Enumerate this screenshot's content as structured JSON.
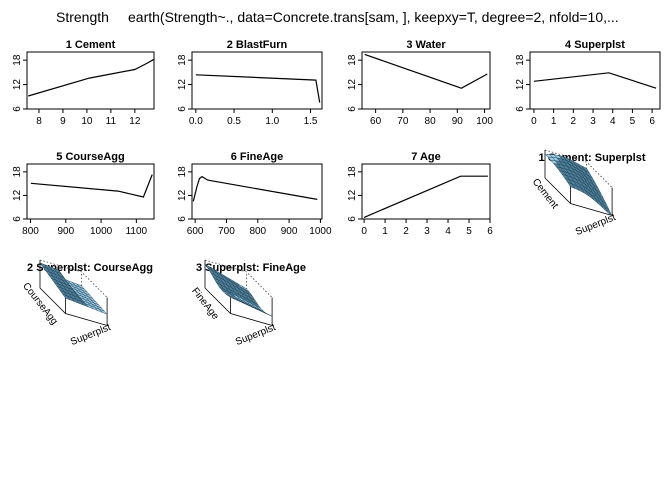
{
  "header": {
    "response": "Strength",
    "call": "earth(Strength~., data=Concrete.trans[sam, ], keepxy=T, degree=2, nfold=10,..."
  },
  "chart_data": [
    {
      "type": "line",
      "title": "1  Cement",
      "xlim": [
        7.5,
        12.8
      ],
      "ylim": [
        6,
        20
      ],
      "xticks": [
        8,
        9,
        10,
        11,
        12
      ],
      "yticks": [
        6,
        12,
        18
      ],
      "x": [
        7.55,
        10.1,
        12.0,
        12.5,
        12.8
      ],
      "y": [
        9.2,
        13.6,
        15.7,
        17.2,
        18.2
      ]
    },
    {
      "type": "line",
      "title": "2  BlastFurn",
      "xlim": [
        -0.05,
        1.65
      ],
      "ylim": [
        6,
        20
      ],
      "xticks": [
        0.0,
        0.5,
        1.0,
        1.5
      ],
      "yticks": [
        6,
        12,
        18
      ],
      "x": [
        0.0,
        1.57,
        1.62
      ],
      "y": [
        14.4,
        13.1,
        7.6
      ]
    },
    {
      "type": "line",
      "title": "3  Water",
      "xlim": [
        55,
        102
      ],
      "ylim": [
        6,
        20
      ],
      "xticks": [
        60,
        70,
        80,
        90,
        100
      ],
      "yticks": [
        6,
        12,
        18
      ],
      "x": [
        56,
        91.5,
        101
      ],
      "y": [
        19.4,
        11.1,
        14.6
      ]
    },
    {
      "type": "line",
      "title": "4  Superplst",
      "xlim": [
        -0.2,
        6.4
      ],
      "ylim": [
        6,
        20
      ],
      "xticks": [
        0,
        1,
        2,
        3,
        4,
        5,
        6
      ],
      "yticks": [
        6,
        12,
        18
      ],
      "x": [
        0,
        3.8,
        6.2
      ],
      "y": [
        12.8,
        14.9,
        11.1
      ]
    },
    {
      "type": "line",
      "title": "5  CourseAgg",
      "xlim": [
        790,
        1150
      ],
      "ylim": [
        6,
        20
      ],
      "xticks": [
        800,
        900,
        1000,
        1100
      ],
      "yticks": [
        6,
        12,
        18
      ],
      "x": [
        801,
        1048,
        1120,
        1145
      ],
      "y": [
        15.1,
        13.1,
        11.6,
        17.3
      ]
    },
    {
      "type": "line",
      "title": "6  FineAge",
      "xlim": [
        590,
        1005
      ],
      "ylim": [
        6,
        20
      ],
      "xticks": [
        600,
        700,
        800,
        900,
        1000
      ],
      "yticks": [
        6,
        12,
        18
      ],
      "x": [
        594,
        606,
        614,
        622,
        640,
        990
      ],
      "y": [
        10.5,
        14.3,
        16.3,
        16.8,
        15.9,
        11.0
      ]
    },
    {
      "type": "line",
      "title": "7  Age",
      "xlim": [
        -0.1,
        6.0
      ],
      "ylim": [
        6,
        20
      ],
      "xticks": [
        0,
        1,
        2,
        3,
        4,
        5,
        6
      ],
      "yticks": [
        6,
        12,
        18
      ],
      "x": [
        0,
        4.6,
        5.9
      ],
      "y": [
        6.4,
        16.9,
        16.9
      ]
    }
  ],
  "surfaces": [
    {
      "title": "1 Cement: Superplst",
      "xlabel": "Cement",
      "ylabel": "Superplst"
    },
    {
      "title": "2 Superplst: CourseAgg",
      "xlabel": "CourseAgg",
      "ylabel": "Superplst"
    },
    {
      "title": "3 Superplst: FineAge",
      "xlabel": "FineAge",
      "ylabel": "Superplst"
    }
  ]
}
